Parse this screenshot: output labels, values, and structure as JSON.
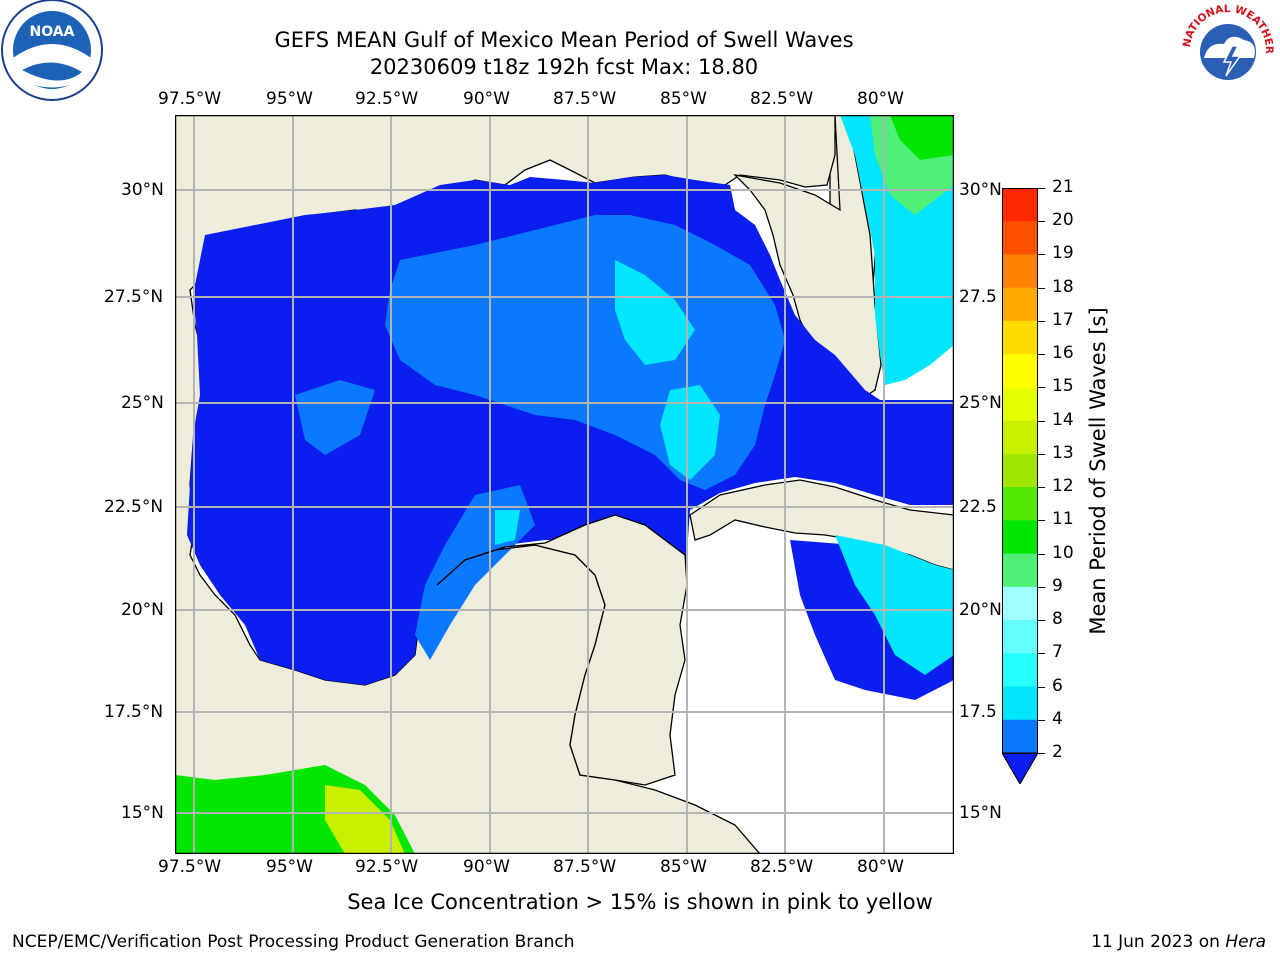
{
  "header": {
    "title": "GEFS MEAN Gulf of Mexico Mean Period of Swell Waves",
    "subtitle": "20230609 t18z 192h fcst   Max: 18.80"
  },
  "logos": {
    "left": {
      "name": "noaa-logo",
      "label": "NOAA"
    },
    "right": {
      "name": "nws-logo",
      "label": "NATIONAL WEATHER SERVICE"
    }
  },
  "map": {
    "lon_labels": [
      "97.5°W",
      "95°W",
      "92.5°W",
      "90°W",
      "87.5°W",
      "85°W",
      "82.5°W",
      "80°W"
    ],
    "lat_labels_left": [
      "30°N",
      "27.5°N",
      "25°N",
      "22.5°N",
      "20°N",
      "17.5°N",
      "15°N"
    ],
    "lat_labels_right": [
      "30°N",
      "27.5",
      "25°N",
      "22.5",
      "20°N",
      "17.5",
      "15°N"
    ],
    "colors": {
      "land": "#eeeddc",
      "grid": "#b4b4b4",
      "coast": "#000000"
    }
  },
  "colorbar": {
    "label": "Mean Period of Swell Waves [s]",
    "ticks": [
      "2",
      "4",
      "6",
      "7",
      "8",
      "9",
      "10",
      "11",
      "12",
      "13",
      "14",
      "15",
      "16",
      "17",
      "18",
      "19",
      "20",
      "21"
    ],
    "colors": [
      "#0a1ef0",
      "#0a78ff",
      "#00e6ff",
      "#28ffff",
      "#64ffff",
      "#a0ffff",
      "#50f078",
      "#00e600",
      "#50e600",
      "#a0e600",
      "#c8f000",
      "#e6ff00",
      "#ffff00",
      "#ffdc00",
      "#ffaa00",
      "#ff8200",
      "#ff5000",
      "#ff2800",
      "#ff0000"
    ]
  },
  "caption": "Sea Ice Concentration > 15% is shown in pink to yellow",
  "footer": {
    "left": "NCEP/EMC/Verification Post Processing Product Generation Branch",
    "right_prefix": "11 Jun 2023 on ",
    "right_host": "Hera"
  }
}
